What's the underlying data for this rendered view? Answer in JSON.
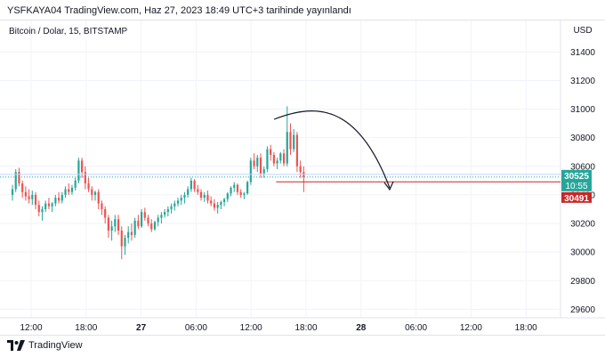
{
  "publish_line": "YSFKAYA04 TradingView.com, Haz 27, 2023 18:49 UTC+3 tarihinde yayınlandı",
  "footer": {
    "brand": "TradingView"
  },
  "colors": {
    "up": "#26a69a",
    "down": "#ef5350",
    "grid": "#f0f3fa",
    "axis_text": "#131722",
    "last_price_bg": "#26a69a",
    "line_price_bg": "#c62828"
  },
  "chart_data": {
    "type": "candlestick",
    "symbol_title": "Bitcoin / Dolar, 15, BITSTAMP",
    "currency": "USD",
    "y_ticks": [
      "31400",
      "31200",
      "31000",
      "30800",
      "30600",
      "30400",
      "30200",
      "30000",
      "29800",
      "29600"
    ],
    "y_tick_values": [
      31400,
      31200,
      31000,
      30800,
      30600,
      30400,
      30200,
      30000,
      29800,
      29600
    ],
    "ylim": [
      29540,
      31620
    ],
    "x_ticks": [
      "12:00",
      "18:00",
      "27",
      "06:00",
      "12:00",
      "18:00",
      "28",
      "06:00",
      "12:00",
      "18:00"
    ],
    "x_tick_bold": [
      false,
      false,
      true,
      false,
      false,
      false,
      true,
      false,
      false,
      false
    ],
    "last_price": "30525",
    "countdown": "10:55",
    "line_price": "30491",
    "line_price_value": 30491,
    "candles_ohlc": [
      [
        30400,
        30470,
        30360,
        30440
      ],
      [
        30440,
        30580,
        30420,
        30560
      ],
      [
        30560,
        30590,
        30460,
        30480
      ],
      [
        30480,
        30500,
        30380,
        30420
      ],
      [
        30420,
        30460,
        30360,
        30390
      ],
      [
        30390,
        30440,
        30340,
        30370
      ],
      [
        30370,
        30430,
        30330,
        30400
      ],
      [
        30400,
        30420,
        30300,
        30330
      ],
      [
        30330,
        30360,
        30250,
        30280
      ],
      [
        30280,
        30320,
        30220,
        30300
      ],
      [
        30300,
        30360,
        30280,
        30340
      ],
      [
        30340,
        30380,
        30300,
        30320
      ],
      [
        30320,
        30350,
        30280,
        30340
      ],
      [
        30340,
        30400,
        30320,
        30380
      ],
      [
        30380,
        30420,
        30340,
        30360
      ],
      [
        30360,
        30420,
        30340,
        30400
      ],
      [
        30400,
        30460,
        30380,
        30440
      ],
      [
        30440,
        30480,
        30400,
        30420
      ],
      [
        30420,
        30470,
        30400,
        30450
      ],
      [
        30450,
        30520,
        30430,
        30500
      ],
      [
        30500,
        30660,
        30480,
        30640
      ],
      [
        30640,
        30660,
        30520,
        30560
      ],
      [
        30560,
        30600,
        30440,
        30480
      ],
      [
        30480,
        30520,
        30420,
        30440
      ],
      [
        30440,
        30460,
        30360,
        30400
      ],
      [
        30400,
        30430,
        30360,
        30420
      ],
      [
        30420,
        30440,
        30300,
        30340
      ],
      [
        30340,
        30360,
        30260,
        30300
      ],
      [
        30300,
        30320,
        30200,
        30240
      ],
      [
        30240,
        30260,
        30100,
        30150
      ],
      [
        30150,
        30220,
        30080,
        30180
      ],
      [
        30180,
        30260,
        30140,
        30230
      ],
      [
        30230,
        30260,
        30120,
        30150
      ],
      [
        30150,
        30180,
        29950,
        30040
      ],
      [
        30040,
        30120,
        29980,
        30100
      ],
      [
        30100,
        30180,
        30060,
        30140
      ],
      [
        30140,
        30200,
        30080,
        30120
      ],
      [
        30120,
        30240,
        30100,
        30220
      ],
      [
        30220,
        30260,
        30160,
        30180
      ],
      [
        30180,
        30300,
        30170,
        30280
      ],
      [
        30280,
        30310,
        30220,
        30240
      ],
      [
        30240,
        30260,
        30180,
        30200
      ],
      [
        30200,
        30230,
        30140,
        30160
      ],
      [
        30160,
        30220,
        30150,
        30210
      ],
      [
        30210,
        30260,
        30180,
        30240
      ],
      [
        30240,
        30280,
        30200,
        30260
      ],
      [
        30260,
        30300,
        30240,
        30280
      ],
      [
        30280,
        30320,
        30250,
        30300
      ],
      [
        30300,
        30340,
        30270,
        30320
      ],
      [
        30320,
        30360,
        30290,
        30340
      ],
      [
        30340,
        30380,
        30320,
        30360
      ],
      [
        30360,
        30400,
        30330,
        30380
      ],
      [
        30380,
        30420,
        30340,
        30400
      ],
      [
        30400,
        30460,
        30380,
        30440
      ],
      [
        30440,
        30520,
        30420,
        30500
      ],
      [
        30500,
        30510,
        30420,
        30440
      ],
      [
        30440,
        30470,
        30400,
        30420
      ],
      [
        30420,
        30440,
        30360,
        30380
      ],
      [
        30380,
        30420,
        30350,
        30400
      ],
      [
        30400,
        30430,
        30340,
        30360
      ],
      [
        30360,
        30390,
        30320,
        30340
      ],
      [
        30340,
        30370,
        30290,
        30310
      ],
      [
        30310,
        30350,
        30270,
        30330
      ],
      [
        30330,
        30360,
        30300,
        30350
      ],
      [
        30350,
        30380,
        30320,
        30370
      ],
      [
        30370,
        30420,
        30350,
        30410
      ],
      [
        30410,
        30460,
        30390,
        30450
      ],
      [
        30450,
        30490,
        30420,
        30470
      ],
      [
        30470,
        30480,
        30400,
        30420
      ],
      [
        30420,
        30440,
        30380,
        30400
      ],
      [
        30400,
        30420,
        30370,
        30410
      ],
      [
        30410,
        30500,
        30400,
        30490
      ],
      [
        30490,
        30660,
        30470,
        30640
      ],
      [
        30640,
        30690,
        30580,
        30600
      ],
      [
        30600,
        30680,
        30560,
        30660
      ],
      [
        30660,
        30690,
        30520,
        30550
      ],
      [
        30550,
        30600,
        30520,
        30580
      ],
      [
        30580,
        30740,
        30560,
        30720
      ],
      [
        30720,
        30750,
        30640,
        30680
      ],
      [
        30680,
        30700,
        30600,
        30620
      ],
      [
        30620,
        30660,
        30580,
        30640
      ],
      [
        30640,
        30700,
        30620,
        30690
      ],
      [
        30690,
        30720,
        30600,
        30620
      ],
      [
        30620,
        31020,
        30600,
        30840
      ],
      [
        30840,
        30900,
        30680,
        30720
      ],
      [
        30720,
        30860,
        30700,
        30820
      ],
      [
        30820,
        30840,
        30560,
        30600
      ],
      [
        30600,
        30640,
        30520,
        30560
      ],
      [
        30560,
        30600,
        30420,
        30525
      ]
    ]
  }
}
